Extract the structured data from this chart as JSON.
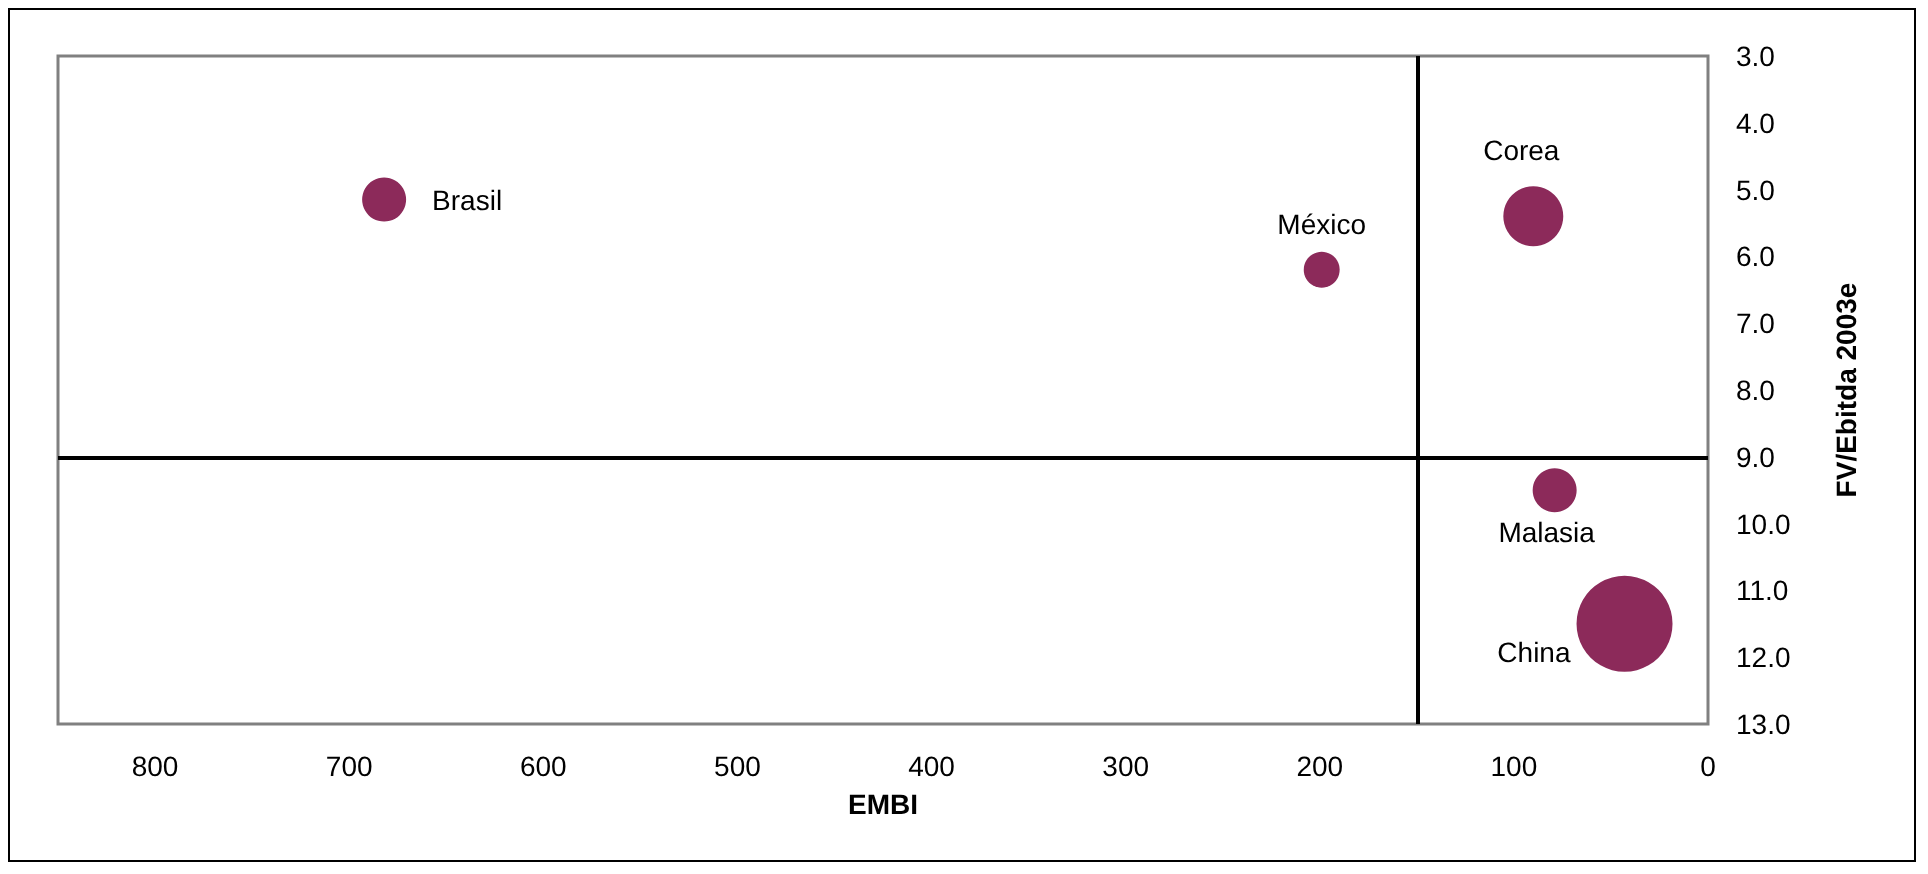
{
  "chart_data": {
    "type": "bubble",
    "xlabel": "EMBI",
    "ylabel": "FV/Ebitda 2003e",
    "series": [
      {
        "name": "Brasil",
        "color": "#8c2a5a",
        "x": [
          682
        ],
        "values": [
          5.15
        ],
        "sizes": [
          0.21
        ]
      },
      {
        "name": "México",
        "color": "#8c2a5a",
        "x": [
          199
        ],
        "values": [
          6.2
        ],
        "sizes": [
          0.14
        ]
      },
      {
        "name": "Corea",
        "color": "#8c2a5a",
        "x": [
          90
        ],
        "values": [
          5.4
        ],
        "sizes": [
          0.39
        ]
      },
      {
        "name": "Malasia",
        "color": "#8c2a5a",
        "x": [
          79
        ],
        "values": [
          9.5
        ],
        "sizes": [
          0.21
        ]
      },
      {
        "name": "China",
        "color": "#8c2a5a",
        "x": [
          43
        ],
        "values": [
          11.5
        ],
        "sizes": [
          1
        ]
      }
    ],
    "xlim": [
      850,
      0
    ],
    "xticks": [
      800,
      700,
      600,
      500,
      400,
      300,
      200,
      100,
      0
    ],
    "ylim": [
      13,
      3
    ],
    "yticks": [
      {
        "value": 3,
        "label": "3.0"
      },
      {
        "value": 4,
        "label": "4.0"
      },
      {
        "value": 5,
        "label": "5.0"
      },
      {
        "value": 6,
        "label": "6.0"
      },
      {
        "value": 7,
        "label": "7.0"
      },
      {
        "value": 8,
        "label": "8.0"
      },
      {
        "value": 9,
        "label": "9.0"
      },
      {
        "value": 10,
        "label": "10.0"
      },
      {
        "value": 11,
        "label": "11.0"
      },
      {
        "value": 12,
        "label": "12.0"
      },
      {
        "value": 13,
        "label": "13.0"
      }
    ],
    "ref_lines": [
      {
        "axis": "y",
        "value": 9,
        "color": "#000000"
      },
      {
        "axis": "x",
        "value": 150,
        "color": "#000000"
      }
    ],
    "grid": false,
    "legend": false
  }
}
